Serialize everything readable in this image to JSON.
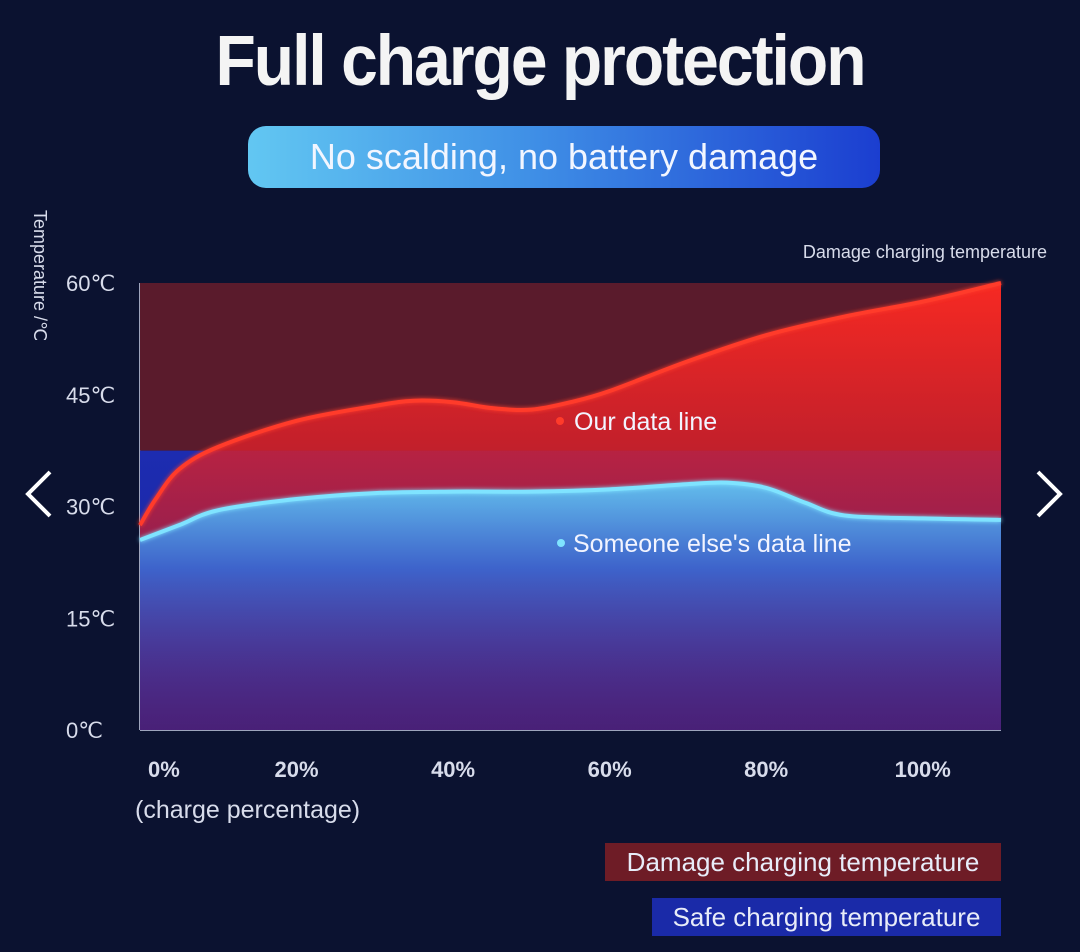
{
  "title": "Full charge protection",
  "subtitle": "No scalding, no battery damage",
  "nav": {
    "prev_icon": "chevron-left-icon",
    "next_icon": "chevron-right-icon"
  },
  "chart_data": {
    "type": "area",
    "ylabel": "Temperature /℃",
    "xlabel": "(charge percentage)",
    "x_ticks": [
      "0%",
      "20%",
      "40%",
      "60%",
      "80%",
      "100%"
    ],
    "y_ticks": [
      "60℃",
      "45℃",
      "30℃",
      "15℃",
      "0℃"
    ],
    "ylim": [
      0,
      60
    ],
    "xlim": [
      0,
      110
    ],
    "zone_label": "Damage charging temperature",
    "damage_threshold": 37.5,
    "series": [
      {
        "name": "Our data line",
        "color": "#ff3b2a",
        "x": [
          0,
          2,
          5,
          10,
          20,
          30,
          35,
          40,
          45,
          50,
          55,
          60,
          70,
          80,
          90,
          100,
          110
        ],
        "y": [
          27.5,
          31,
          35,
          38,
          41.5,
          43.5,
          44.2,
          44,
          43.2,
          43,
          44,
          45.5,
          49.5,
          53,
          55.5,
          57.5,
          60
        ]
      },
      {
        "name": "Someone else's data line",
        "color": "#7fe3ff",
        "x": [
          0,
          5,
          10,
          20,
          30,
          40,
          50,
          60,
          70,
          75,
          80,
          85,
          90,
          100,
          110
        ],
        "y": [
          25.5,
          27.5,
          29.5,
          31,
          31.8,
          32,
          32,
          32.3,
          33,
          33.2,
          32.5,
          30.5,
          28.8,
          28.4,
          28.2
        ]
      }
    ],
    "legend": [
      {
        "label": "Damage charging temperature",
        "color": "#6e1c26"
      },
      {
        "label": "Safe charging temperature",
        "color": "#1a2aa8"
      }
    ]
  }
}
